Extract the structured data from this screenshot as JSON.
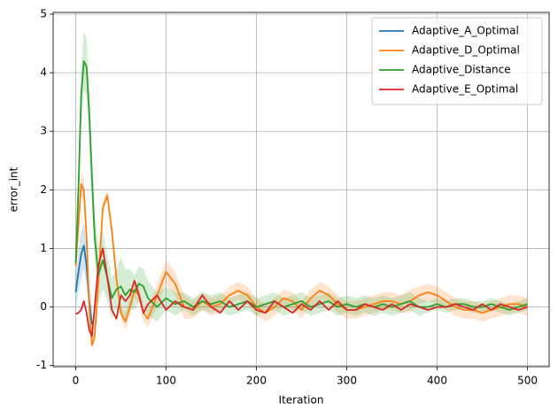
{
  "chart_data": {
    "type": "line",
    "x_label": "Iteration",
    "y_label": "error_int",
    "x": [
      0,
      3,
      6,
      9,
      12,
      15,
      18,
      21,
      25,
      30,
      35,
      40,
      45,
      50,
      55,
      60,
      65,
      70,
      75,
      80,
      90,
      100,
      110,
      120,
      130,
      140,
      150,
      160,
      170,
      180,
      190,
      200,
      210,
      220,
      230,
      240,
      250,
      260,
      270,
      280,
      290,
      300,
      310,
      320,
      330,
      340,
      350,
      360,
      370,
      380,
      390,
      400,
      410,
      420,
      430,
      440,
      450,
      460,
      470,
      480,
      490,
      500
    ],
    "series": [
      {
        "name": "Adaptive_A_Optimal",
        "color": "#1f77b4",
        "values": [
          0.25,
          0.6,
          0.9,
          1.05,
          0.7,
          0.1,
          -0.3,
          null,
          null,
          null,
          null,
          null,
          null,
          null,
          null,
          null,
          null,
          null,
          null,
          null,
          null,
          null,
          null,
          null,
          null,
          null,
          null,
          null,
          null,
          null,
          null,
          null,
          null,
          null,
          null,
          null,
          null,
          null,
          null,
          null,
          null,
          null,
          null,
          null,
          null,
          null,
          null,
          null,
          null,
          null,
          null,
          null,
          null,
          null,
          null,
          null,
          null,
          null,
          null,
          null,
          null,
          null
        ],
        "band": [
          0.3,
          0.35,
          0.4,
          0.4,
          0.35,
          0.3,
          0.25,
          null,
          null,
          null,
          null,
          null,
          null,
          null,
          null,
          null,
          null,
          null,
          null,
          null,
          null,
          null,
          null,
          null,
          null,
          null,
          null,
          null,
          null,
          null,
          null,
          null,
          null,
          null,
          null,
          null,
          null,
          null,
          null,
          null,
          null,
          null,
          null,
          null,
          null,
          null,
          null,
          null,
          null,
          null,
          null,
          null,
          null,
          null,
          null,
          null,
          null,
          null,
          null,
          null,
          null,
          null
        ]
      },
      {
        "name": "Adaptive_D_Optimal",
        "color": "#ff7f0e",
        "values": [
          0.7,
          1.4,
          2.1,
          2.0,
          1.2,
          0.0,
          -0.65,
          -0.5,
          0.4,
          1.7,
          1.9,
          1.3,
          0.5,
          -0.1,
          -0.25,
          0.0,
          0.3,
          0.2,
          -0.1,
          -0.2,
          0.2,
          0.6,
          0.4,
          0.0,
          -0.05,
          0.1,
          0.0,
          0.05,
          0.2,
          0.28,
          0.2,
          0.0,
          -0.1,
          0.0,
          0.15,
          0.1,
          -0.05,
          0.15,
          0.28,
          0.2,
          0.05,
          -0.05,
          -0.05,
          0.0,
          0.05,
          0.1,
          0.1,
          0.05,
          0.1,
          0.2,
          0.25,
          0.2,
          0.1,
          0.0,
          -0.05,
          -0.05,
          -0.1,
          -0.05,
          0.0,
          0.05,
          0.05,
          0.0
        ],
        "band": [
          0.1,
          0.2,
          0.2,
          0.2,
          0.15,
          0.1,
          0.1,
          0.1,
          0.1,
          0.1,
          0.1,
          0.1,
          0.1,
          0.1,
          0.15,
          0.15,
          0.15,
          0.15,
          0.15,
          0.15,
          0.2,
          0.2,
          0.2,
          0.2,
          0.15,
          0.15,
          0.15,
          0.15,
          0.15,
          0.15,
          0.15,
          0.15,
          0.15,
          0.15,
          0.15,
          0.15,
          0.15,
          0.15,
          0.15,
          0.15,
          0.15,
          0.15,
          0.15,
          0.15,
          0.15,
          0.15,
          0.15,
          0.15,
          0.2,
          0.15,
          0.15,
          0.15,
          0.15,
          0.15,
          0.15,
          0.15,
          0.15,
          0.15,
          0.15,
          0.15,
          0.15,
          0.15
        ]
      },
      {
        "name": "Adaptive_Distance",
        "color": "#2ca02c",
        "values": [
          0.75,
          2.0,
          3.6,
          4.2,
          4.1,
          3.3,
          2.2,
          1.2,
          0.55,
          0.8,
          0.5,
          0.15,
          0.3,
          0.35,
          0.2,
          0.3,
          0.25,
          0.4,
          0.35,
          0.15,
          0.0,
          0.15,
          0.05,
          0.1,
          0.0,
          0.1,
          0.05,
          0.1,
          0.0,
          0.05,
          0.1,
          0.0,
          0.05,
          0.1,
          0.0,
          0.05,
          0.1,
          0.0,
          0.05,
          0.1,
          0.0,
          0.05,
          0.0,
          0.05,
          0.0,
          0.05,
          0.0,
          0.05,
          0.1,
          0.0,
          0.0,
          0.05,
          0.0,
          0.05,
          0.05,
          0.0,
          0.0,
          0.05,
          0.0,
          -0.05,
          0.0,
          0.05
        ],
        "band": [
          0.3,
          0.4,
          0.5,
          0.5,
          0.5,
          0.5,
          0.45,
          0.4,
          0.5,
          0.5,
          0.4,
          0.35,
          0.35,
          0.5,
          0.45,
          0.35,
          0.3,
          0.3,
          0.3,
          0.3,
          0.25,
          0.2,
          0.2,
          0.15,
          0.15,
          0.15,
          0.15,
          0.15,
          0.15,
          0.15,
          0.15,
          0.15,
          0.15,
          0.15,
          0.15,
          0.15,
          0.15,
          0.15,
          0.15,
          0.15,
          0.15,
          0.15,
          0.15,
          0.15,
          0.15,
          0.15,
          0.15,
          0.15,
          0.15,
          0.15,
          0.1,
          0.1,
          0.1,
          0.1,
          0.1,
          0.1,
          0.1,
          0.1,
          0.1,
          0.1,
          0.1,
          0.1
        ]
      },
      {
        "name": "Adaptive_E_Optimal",
        "color": "#d62728",
        "values": [
          -0.12,
          -0.1,
          -0.05,
          0.1,
          -0.1,
          -0.4,
          -0.5,
          0.0,
          0.7,
          1.0,
          0.5,
          -0.05,
          -0.2,
          0.2,
          0.1,
          0.2,
          0.45,
          0.2,
          -0.1,
          0.05,
          0.2,
          -0.05,
          0.1,
          0.0,
          -0.05,
          0.2,
          0.0,
          -0.1,
          0.1,
          -0.05,
          0.1,
          -0.05,
          -0.1,
          0.1,
          0.0,
          -0.1,
          0.05,
          -0.05,
          0.1,
          -0.05,
          0.1,
          -0.05,
          -0.05,
          0.05,
          0.0,
          -0.05,
          0.05,
          -0.05,
          0.05,
          0.0,
          -0.05,
          0.0,
          0.0,
          0.05,
          0.0,
          -0.05,
          0.05,
          -0.05,
          0.05,
          0.0,
          -0.05,
          0.0
        ]
      }
    ],
    "xlim": [
      -25,
      524
    ],
    "ylim": [
      -1.02,
      5.03
    ],
    "xticks": [
      0,
      100,
      200,
      300,
      400,
      500
    ],
    "yticks": [
      -1,
      0,
      1,
      2,
      3,
      4,
      5
    ],
    "grid": true,
    "legend": "upper right"
  }
}
